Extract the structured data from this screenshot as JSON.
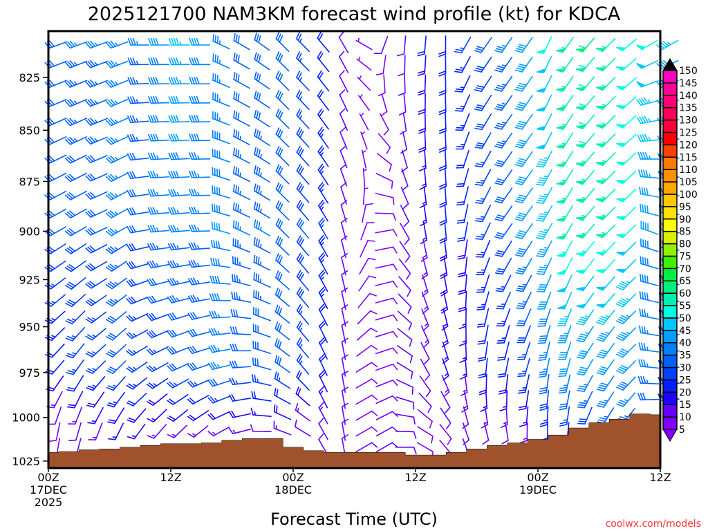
{
  "chart_data": {
    "type": "wind_barb",
    "title": "2025121700 NAM3KM forecast wind profile (kt) for KDCA",
    "xlabel": "Forecast Time (UTC)",
    "credit": "coolwx.com/models",
    "ylim": [
      803,
      1030
    ],
    "xlim_hours": [
      0,
      60
    ],
    "y_ticks": [
      825,
      850,
      875,
      900,
      925,
      950,
      975,
      1000,
      1025
    ],
    "x_ticks": [
      {
        "hour": 0,
        "lines": [
          "00Z",
          "17DEC",
          "2025"
        ]
      },
      {
        "hour": 12,
        "lines": [
          "12Z"
        ]
      },
      {
        "hour": 24,
        "lines": [
          "00Z",
          "18DEC"
        ]
      },
      {
        "hour": 36,
        "lines": [
          "12Z"
        ]
      },
      {
        "hour": 48,
        "lines": [
          "00Z",
          "19DEC"
        ]
      },
      {
        "hour": 60,
        "lines": [
          "12Z"
        ]
      }
    ],
    "levels_hpa": [
      810,
      819,
      828,
      837,
      846,
      855,
      864,
      873,
      882,
      891,
      900,
      909,
      918,
      927,
      936,
      945,
      954,
      963,
      972,
      981,
      990,
      999,
      1008,
      1017,
      1026
    ],
    "anchor_levels_hpa": [
      810,
      900,
      975,
      1010
    ],
    "hours": [
      0,
      2,
      4,
      6,
      8,
      10,
      12,
      14,
      16,
      18,
      20,
      22,
      24,
      26,
      28,
      30,
      32,
      34,
      36,
      38,
      40,
      42,
      44,
      46,
      48,
      50,
      52,
      54,
      56,
      58,
      60
    ],
    "surface_pressure_hpa": [
      1020,
      1019.5,
      1018.5,
      1018,
      1017,
      1016,
      1015,
      1015,
      1014.5,
      1013,
      1012,
      1012,
      1017,
      1019,
      1020,
      1020,
      1020,
      1020,
      1021.5,
      1021.5,
      1020,
      1018,
      1016,
      1014.5,
      1012.5,
      1010,
      1006,
      1003,
      1001,
      998,
      998.5
    ],
    "wind_profiles": [
      [
        [
          250,
          30
        ],
        [
          240,
          30
        ],
        [
          220,
          20
        ],
        [
          190,
          8
        ]
      ],
      [
        [
          250,
          35
        ],
        [
          240,
          30
        ],
        [
          215,
          25
        ],
        [
          195,
          10
        ]
      ],
      [
        [
          250,
          35
        ],
        [
          245,
          30
        ],
        [
          225,
          25
        ],
        [
          200,
          12
        ]
      ],
      [
        [
          250,
          35
        ],
        [
          240,
          35
        ],
        [
          225,
          30
        ],
        [
          205,
          15
        ]
      ],
      [
        [
          270,
          35
        ],
        [
          260,
          30
        ],
        [
          235,
          25
        ],
        [
          215,
          15
        ]
      ],
      [
        [
          270,
          40
        ],
        [
          265,
          35
        ],
        [
          240,
          25
        ],
        [
          220,
          12
        ]
      ],
      [
        [
          270,
          45
        ],
        [
          265,
          35
        ],
        [
          245,
          30
        ],
        [
          225,
          12
        ]
      ],
      [
        [
          270,
          40
        ],
        [
          268,
          35
        ],
        [
          250,
          30
        ],
        [
          230,
          12
        ]
      ],
      [
        [
          295,
          35
        ],
        [
          285,
          40
        ],
        [
          255,
          35
        ],
        [
          240,
          12
        ]
      ],
      [
        [
          300,
          30
        ],
        [
          295,
          35
        ],
        [
          265,
          30
        ],
        [
          255,
          12
        ]
      ],
      [
        [
          305,
          30
        ],
        [
          300,
          35
        ],
        [
          285,
          30
        ],
        [
          270,
          10
        ]
      ],
      [
        [
          315,
          30
        ],
        [
          315,
          30
        ],
        [
          305,
          30
        ],
        [
          290,
          12
        ]
      ],
      [
        [
          315,
          25
        ],
        [
          320,
          30
        ],
        [
          320,
          25
        ],
        [
          300,
          10
        ]
      ],
      [
        [
          320,
          20
        ],
        [
          330,
          25
        ],
        [
          335,
          20
        ],
        [
          330,
          12
        ]
      ],
      [
        [
          330,
          10
        ],
        [
          345,
          10
        ],
        [
          350,
          12
        ],
        [
          350,
          10
        ]
      ],
      [
        [
          300,
          5
        ],
        [
          20,
          8
        ],
        [
          60,
          8
        ],
        [
          60,
          10
        ]
      ],
      [
        [
          200,
          10
        ],
        [
          80,
          8
        ],
        [
          70,
          10
        ],
        [
          60,
          10
        ]
      ],
      [
        [
          185,
          12
        ],
        [
          150,
          10
        ],
        [
          120,
          10
        ],
        [
          90,
          10
        ]
      ],
      [
        [
          185,
          20
        ],
        [
          170,
          15
        ],
        [
          150,
          12
        ],
        [
          120,
          8
        ]
      ],
      [
        [
          180,
          20
        ],
        [
          175,
          20
        ],
        [
          160,
          15
        ],
        [
          140,
          8
        ]
      ],
      [
        [
          210,
          25
        ],
        [
          190,
          20
        ],
        [
          175,
          15
        ],
        [
          160,
          10
        ]
      ],
      [
        [
          215,
          30
        ],
        [
          205,
          25
        ],
        [
          185,
          20
        ],
        [
          165,
          10
        ]
      ],
      [
        [
          215,
          35
        ],
        [
          215,
          30
        ],
        [
          190,
          20
        ],
        [
          170,
          10
        ]
      ],
      [
        [
          215,
          40
        ],
        [
          215,
          40
        ],
        [
          195,
          25
        ],
        [
          180,
          12
        ]
      ],
      [
        [
          205,
          50
        ],
        [
          210,
          45
        ],
        [
          190,
          35
        ],
        [
          180,
          20
        ]
      ],
      [
        [
          215,
          55
        ],
        [
          210,
          55
        ],
        [
          195,
          40
        ],
        [
          185,
          20
        ]
      ],
      [
        [
          220,
          60
        ],
        [
          220,
          55
        ],
        [
          210,
          40
        ],
        [
          200,
          25
        ]
      ],
      [
        [
          225,
          55
        ],
        [
          225,
          55
        ],
        [
          215,
          40
        ],
        [
          210,
          30
        ]
      ],
      [
        [
          230,
          50
        ],
        [
          225,
          50
        ],
        [
          225,
          40
        ],
        [
          215,
          30
        ]
      ],
      [
        [
          240,
          50
        ],
        [
          290,
          40
        ],
        [
          275,
          35
        ],
        [
          260,
          25
        ]
      ],
      [
        [
          240,
          45
        ],
        [
          280,
          35
        ],
        [
          270,
          30
        ],
        [
          260,
          25
        ]
      ]
    ],
    "colorbar": {
      "labels": [
        5,
        10,
        15,
        20,
        25,
        30,
        35,
        40,
        45,
        50,
        55,
        60,
        65,
        70,
        75,
        80,
        85,
        90,
        95,
        100,
        105,
        110,
        115,
        120,
        125,
        130,
        135,
        140,
        145,
        150
      ],
      "colors": [
        "#8000ff",
        "#6400ff",
        "#2000ff",
        "#0020ff",
        "#0040ff",
        "#0060ff",
        "#0080ff",
        "#00a0ff",
        "#00c8ff",
        "#00ffe0",
        "#00f0b0",
        "#00f080",
        "#00f040",
        "#40f000",
        "#90f000",
        "#d8f000",
        "#ffff00",
        "#ffe000",
        "#ffc800",
        "#ffa800",
        "#ff9000",
        "#ff7800",
        "#ff4000",
        "#ff0000",
        "#ff0038",
        "#ff0058",
        "#ff0078",
        "#ff0098",
        "#ff00c0",
        "#ff00ff"
      ],
      "under_color": "#8000ff",
      "over_color": "#000000"
    },
    "terrain_color": "#a0522d"
  }
}
